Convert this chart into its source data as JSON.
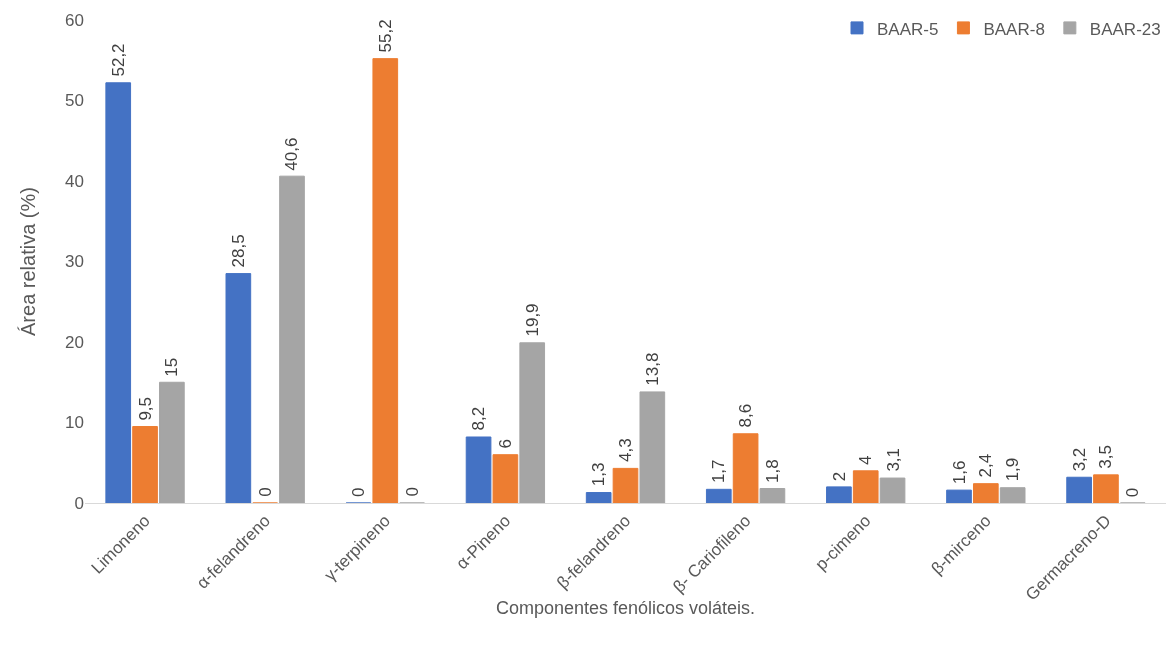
{
  "chart_data": {
    "type": "bar",
    "xlabel": "Componentes fenólicos voláteis.",
    "ylabel": "Área relativa (%)",
    "categories": [
      "Limoneno",
      "α-felandreno",
      "γ-terpineno",
      "α-Pineno",
      "β-felandreno",
      "β- Cariofileno",
      "p-cimeno",
      "β-mirceno",
      "Germacreno-D"
    ],
    "series": [
      {
        "name": "BAAR-5",
        "color": "#4472c4",
        "values": [
          52.2,
          28.5,
          0,
          8.2,
          1.3,
          1.7,
          2,
          1.6,
          3.2
        ],
        "value_labels": [
          "52,2",
          "28,5",
          "0",
          "8,2",
          "1,3",
          "1,7",
          "2",
          "1,6",
          "3,2"
        ]
      },
      {
        "name": "BAAR-8",
        "color": "#ed7d31",
        "values": [
          9.5,
          0,
          55.2,
          6,
          4.3,
          8.6,
          4,
          2.4,
          3.5
        ],
        "value_labels": [
          "9,5",
          "0",
          "55,2",
          "6",
          "4,3",
          "8,6",
          "4",
          "2,4",
          "3,5"
        ]
      },
      {
        "name": "BAAR-23",
        "color": "#a5a5a5",
        "values": [
          15,
          40.6,
          0,
          19.9,
          13.8,
          1.8,
          3.1,
          1.9,
          0
        ],
        "value_labels": [
          "15",
          "40,6",
          "0",
          "19,9",
          "13,8",
          "1,8",
          "3,1",
          "1,9",
          "0"
        ]
      }
    ],
    "ylim": [
      0,
      60
    ],
    "yticks": [
      0,
      10,
      20,
      30,
      40,
      50,
      60
    ],
    "grid": false,
    "legend": "top right"
  }
}
